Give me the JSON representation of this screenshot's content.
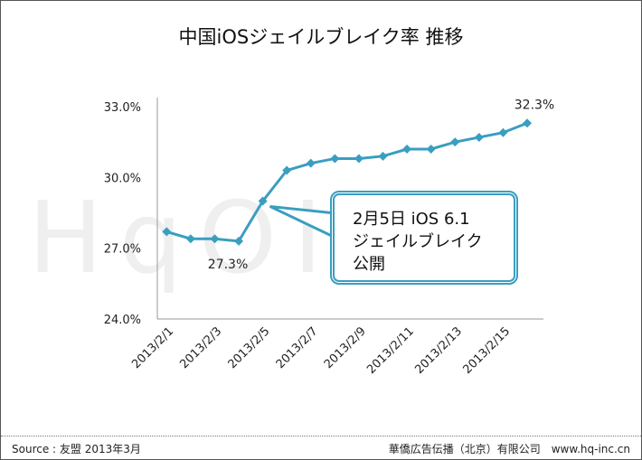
{
  "title": "中国iOSジェイルブレイク率 推移",
  "chart_data": {
    "type": "line",
    "title": "中国iOSジェイルブレイク率 推移",
    "x": [
      "2013/2/1",
      "2013/2/2",
      "2013/2/3",
      "2013/2/4",
      "2013/2/5",
      "2013/2/6",
      "2013/2/7",
      "2013/2/8",
      "2013/2/9",
      "2013/2/10",
      "2013/2/11",
      "2013/2/12",
      "2013/2/13",
      "2013/2/14",
      "2013/2/15",
      "2013/2/16"
    ],
    "values": [
      27.7,
      27.4,
      27.4,
      27.3,
      29.0,
      30.3,
      30.6,
      30.8,
      30.8,
      30.9,
      31.2,
      31.2,
      31.5,
      31.7,
      31.9,
      32.3
    ],
    "x_tick_labels": [
      "2013/2/1",
      "2013/2/3",
      "2013/2/5",
      "2013/2/7",
      "2013/2/9",
      "2013/2/11",
      "2013/2/13",
      "2013/2/15"
    ],
    "y_tick_labels": [
      "24.0%",
      "27.0%",
      "30.0%",
      "33.0%"
    ],
    "ylim": [
      24.0,
      33.0
    ],
    "grid": false,
    "color": "#3a9ec0",
    "data_labels": [
      {
        "x": "2013/2/4",
        "text": "27.3%"
      },
      {
        "x": "2013/2/16",
        "text": "32.3%"
      }
    ],
    "annotation": {
      "x": "2013/2/5",
      "lines": [
        "2月5日 iOS 6.1",
        "ジェイルブレイク",
        "公開"
      ]
    }
  },
  "watermark": "HqOInc.",
  "footer": {
    "source": "Source : 友盟 2013年3月",
    "company": "華僑広告伝播（北京）有限公司　www.hq-inc.cn"
  }
}
